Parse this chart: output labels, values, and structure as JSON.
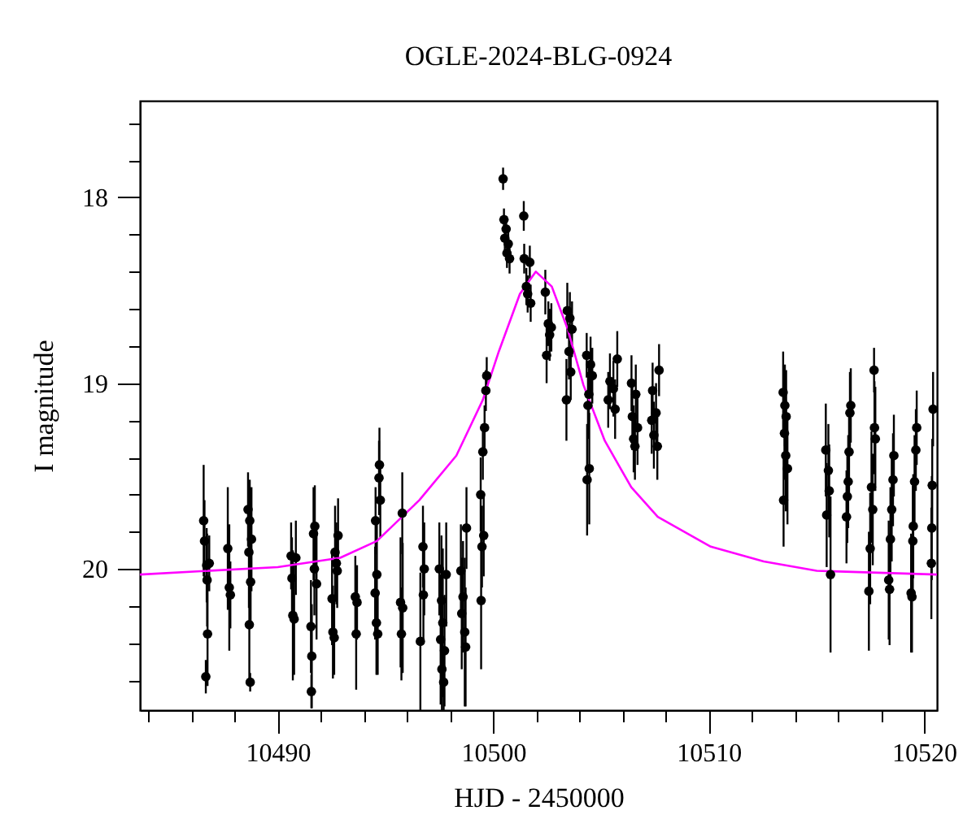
{
  "chart_data": {
    "type": "scatter",
    "title": "OGLE-2024-BLG-0924",
    "xlabel": "HJD - 2450000",
    "ylabel": "I magnitude",
    "xlim": [
      10483.6,
      10520.6
    ],
    "xticks": [
      {
        "value": 10484,
        "label": null
      },
      {
        "value": 10486,
        "label": null
      },
      {
        "value": 10488,
        "label": null
      },
      10490,
      {
        "value": 10492,
        "label": null
      },
      {
        "value": 10494,
        "label": null
      },
      {
        "value": 10496,
        "label": null
      },
      {
        "value": 10498,
        "label": null
      },
      10500,
      {
        "value": 10502,
        "label": null
      },
      {
        "value": 10504,
        "label": null
      },
      {
        "value": 10506,
        "label": null
      },
      {
        "value": 10508,
        "label": null
      },
      10510,
      {
        "value": 10512,
        "label": null
      },
      {
        "value": 10514,
        "label": null
      },
      {
        "value": 10516,
        "label": null
      },
      {
        "value": 10518,
        "label": null
      },
      10520
    ],
    "ylim": [
      20.76,
      17.48
    ],
    "yticks": [
      {
        "value": 17.6,
        "label": null
      },
      {
        "value": 17.8,
        "label": null
      },
      18,
      {
        "value": 18.2,
        "label": null
      },
      {
        "value": 18.4,
        "label": null
      },
      {
        "value": 18.6,
        "label": null
      },
      {
        "value": 18.8,
        "label": null
      },
      19,
      {
        "value": 19.2,
        "label": null
      },
      {
        "value": 19.4,
        "label": null
      },
      {
        "value": 19.6,
        "label": null
      },
      {
        "value": 19.8,
        "label": null
      },
      20,
      {
        "value": 20.2,
        "label": null
      },
      {
        "value": 20.4,
        "label": null
      },
      {
        "value": 20.6,
        "label": null
      }
    ],
    "grid": false,
    "series": [
      {
        "color": "#000000",
        "marker": "circle",
        "x": [
          10486.56,
          10486.6,
          10486.7,
          10486.72,
          10486.74,
          10486.66,
          10486.82,
          10487.68,
          10487.75,
          10487.8,
          10488.62,
          10488.7,
          10488.78,
          10488.66,
          10488.74,
          10488.68,
          10488.72,
          10490.62,
          10490.66,
          10490.7,
          10490.76,
          10490.84,
          10491.54,
          10491.58,
          10491.56,
          10491.72,
          10491.66,
          10491.7,
          10491.8,
          10492.52,
          10492.56,
          10492.62,
          10492.66,
          10492.72,
          10492.76,
          10492.8,
          10493.6,
          10493.68,
          10493.64,
          10494.72,
          10494.7,
          10494.76,
          10494.54,
          10494.6,
          10494.52,
          10494.58,
          10494.64,
          10495.78,
          10495.7,
          10495.8,
          10495.74,
          10496.62,
          10496.74,
          10496.8,
          10496.76,
          10497.5,
          10497.82,
          10497.6,
          10497.66,
          10497.56,
          10497.74,
          10497.62,
          10497.7,
          10498.5,
          10498.76,
          10498.6,
          10498.54,
          10498.68,
          10498.72,
          10499.7,
          10499.66,
          10499.6,
          10499.52,
          10499.42,
          10499.56,
          10499.48,
          10499.44,
          10500.46,
          10500.5,
          10500.6,
          10500.54,
          10500.7,
          10500.64,
          10500.76,
          10501.42,
          10501.44,
          10501.7,
          10501.54,
          10501.6,
          10501.74,
          10502.42,
          10502.56,
          10502.7,
          10502.62,
          10502.48,
          10503.44,
          10503.56,
          10503.66,
          10503.52,
          10503.6,
          10503.4,
          10504.34,
          10504.52,
          10504.6,
          10504.44,
          10504.4,
          10504.46,
          10504.36,
          10505.76,
          10505.42,
          10505.58,
          10505.34,
          10505.66,
          10506.42,
          10506.62,
          10506.46,
          10506.7,
          10506.52,
          10506.58,
          10507.7,
          10507.4,
          10507.56,
          10507.36,
          10507.46,
          10507.62,
          10513.46,
          10513.54,
          10513.6,
          10513.52,
          10513.58,
          10513.66,
          10513.48,
          10515.44,
          10515.56,
          10515.6,
          10515.48,
          10515.66,
          10516.6,
          10516.56,
          10516.52,
          10516.48,
          10516.44,
          10516.4,
          10517.68,
          10517.7,
          10517.74,
          10517.56,
          10517.62,
          10517.5,
          10517.44,
          10518.6,
          10518.56,
          10518.5,
          10518.44,
          10518.36,
          10518.4,
          10519.66,
          10519.62,
          10519.56,
          10519.5,
          10519.48,
          10519.4,
          10519.44,
          10520.42,
          10520.38,
          10520.36,
          10520.34
        ],
        "values": [
          19.74,
          19.85,
          19.98,
          20.06,
          20.35,
          20.58,
          19.97,
          19.89,
          20.1,
          20.14,
          19.68,
          19.74,
          19.84,
          19.91,
          20.07,
          20.3,
          20.61,
          19.93,
          20.05,
          20.25,
          20.27,
          19.94,
          20.31,
          20.47,
          20.66,
          19.77,
          19.81,
          20.0,
          20.08,
          20.16,
          20.34,
          20.37,
          19.91,
          19.97,
          20.01,
          19.82,
          20.15,
          20.18,
          20.35,
          19.44,
          19.51,
          19.63,
          19.74,
          20.03,
          20.13,
          20.29,
          20.35,
          19.7,
          20.18,
          20.21,
          20.35,
          20.39,
          19.88,
          20.0,
          20.14,
          20.0,
          20.03,
          20.17,
          20.29,
          20.38,
          20.44,
          20.54,
          20.61,
          20.01,
          19.78,
          20.15,
          20.24,
          20.34,
          20.42,
          18.96,
          19.04,
          19.24,
          19.37,
          19.6,
          19.82,
          19.88,
          20.17,
          17.9,
          18.12,
          18.17,
          18.22,
          18.25,
          18.3,
          18.33,
          18.1,
          18.33,
          18.35,
          18.48,
          18.52,
          18.57,
          18.51,
          18.68,
          18.7,
          18.74,
          18.85,
          18.61,
          18.65,
          18.71,
          18.83,
          18.94,
          19.09,
          18.85,
          18.9,
          18.96,
          19.06,
          19.12,
          19.46,
          19.52,
          18.87,
          18.99,
          19.03,
          19.09,
          19.14,
          19.0,
          19.06,
          19.18,
          19.24,
          19.3,
          19.34,
          18.93,
          19.04,
          19.16,
          19.2,
          19.28,
          19.34,
          19.05,
          19.12,
          19.18,
          19.27,
          19.39,
          19.46,
          19.63,
          19.36,
          19.47,
          19.58,
          19.71,
          20.03,
          19.12,
          19.16,
          19.37,
          19.53,
          19.61,
          19.72,
          18.93,
          19.24,
          19.3,
          19.56,
          19.68,
          19.89,
          20.12,
          19.39,
          19.52,
          19.68,
          19.84,
          20.06,
          20.11,
          19.24,
          19.36,
          19.53,
          19.77,
          19.85,
          20.13,
          20.15,
          19.14,
          19.55,
          19.78,
          19.97
        ],
        "errors": [
          0.3,
          0.22,
          0.2,
          0.25,
          0.28,
          0.09,
          0.15,
          0.33,
          0.34,
          0.18,
          0.2,
          0.22,
          0.28,
          0.3,
          0.25,
          0.3,
          0.05,
          0.18,
          0.22,
          0.35,
          0.3,
          0.2,
          0.25,
          0.28,
          0.09,
          0.22,
          0.25,
          0.25,
          0.3,
          0.25,
          0.25,
          0.2,
          0.25,
          0.22,
          0.2,
          0.2,
          0.22,
          0.2,
          0.3,
          0.2,
          0.2,
          0.2,
          0.18,
          0.28,
          0.25,
          0.28,
          0.22,
          0.22,
          0.35,
          0.35,
          0.25,
          0.37,
          0.22,
          0.25,
          0.25,
          0.25,
          0.28,
          0.35,
          0.4,
          0.35,
          0.3,
          0.22,
          0.15,
          0.25,
          0.22,
          0.3,
          0.3,
          0.4,
          0.32,
          0.1,
          0.11,
          0.12,
          0.15,
          0.2,
          0.22,
          0.22,
          0.37,
          0.06,
          0.06,
          0.07,
          0.07,
          0.08,
          0.08,
          0.08,
          0.08,
          0.08,
          0.09,
          0.1,
          0.1,
          0.1,
          0.12,
          0.12,
          0.13,
          0.14,
          0.15,
          0.15,
          0.14,
          0.15,
          0.15,
          0.15,
          0.22,
          0.12,
          0.15,
          0.15,
          0.15,
          0.18,
          0.3,
          0.3,
          0.15,
          0.15,
          0.15,
          0.15,
          0.16,
          0.15,
          0.16,
          0.18,
          0.2,
          0.18,
          0.18,
          0.14,
          0.15,
          0.16,
          0.18,
          0.18,
          0.18,
          0.22,
          0.22,
          0.25,
          0.25,
          0.3,
          0.3,
          0.25,
          0.25,
          0.25,
          0.25,
          0.28,
          0.42,
          0.2,
          0.22,
          0.25,
          0.25,
          0.25,
          0.25,
          0.12,
          0.25,
          0.28,
          0.3,
          0.3,
          0.3,
          0.32,
          0.22,
          0.25,
          0.28,
          0.28,
          0.32,
          0.3,
          0.2,
          0.22,
          0.25,
          0.28,
          0.3,
          0.32,
          0.3,
          0.2,
          0.25,
          0.28,
          0.3
        ]
      },
      {
        "type": "line",
        "color": "#ff00ff",
        "x": [
          10483.6,
          10490,
          10492.9,
          10494.6,
          10496.57,
          10498.29,
          10499.52,
          10500.26,
          10501.24,
          10501.98,
          10502.72,
          10503.46,
          10504.19,
          10505.18,
          10506.41,
          10507.64,
          10510.1,
          10512.56,
          10515.02,
          10520.6
        ],
        "values": [
          20.03,
          19.99,
          19.94,
          19.85,
          19.63,
          19.39,
          19.09,
          18.83,
          18.52,
          18.4,
          18.48,
          18.71,
          19.01,
          19.31,
          19.56,
          19.72,
          19.88,
          19.96,
          20.01,
          20.03
        ]
      }
    ]
  }
}
